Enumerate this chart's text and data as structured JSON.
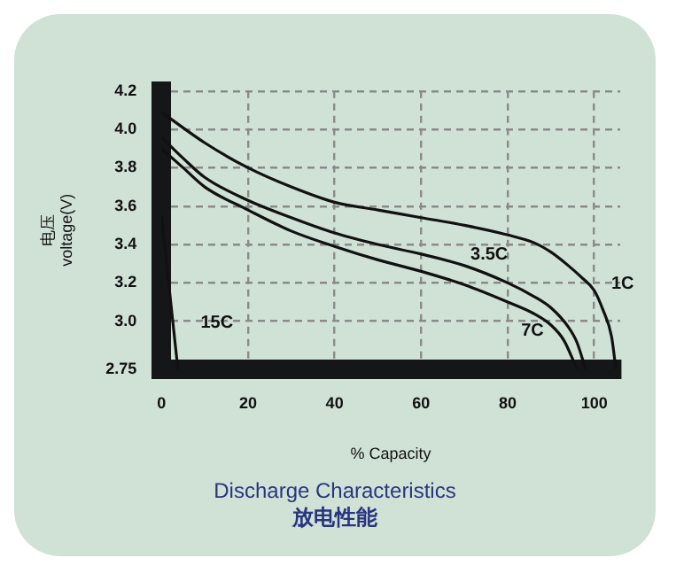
{
  "chart_data": {
    "type": "line",
    "title": "Discharge Characteristics",
    "subtitle": "放电性能",
    "xlabel": "% Capacity",
    "ylabel": "电压\nvoltage(V)",
    "xlim": [
      0,
      106
    ],
    "xticks": [
      0,
      20,
      40,
      60,
      80,
      100
    ],
    "ylim": [
      2.75,
      4.2
    ],
    "yticks": [
      2.75,
      {
        "value": 3,
        "label": "3.0"
      },
      3.2,
      3.4,
      3.6,
      3.8,
      {
        "value": 4,
        "label": "4.0"
      },
      4.2
    ],
    "grid": true,
    "legend": false,
    "marker": "none",
    "line_style": "solid",
    "series": [
      {
        "name": "1C",
        "color": "#111111",
        "x": [
          0,
          10,
          20,
          30,
          40,
          50,
          60,
          70,
          80,
          86,
          90,
          94,
          97,
          100,
          102,
          104,
          105
        ],
        "values": [
          4.09,
          3.93,
          3.8,
          3.7,
          3.62,
          3.58,
          3.54,
          3.5,
          3.45,
          3.41,
          3.36,
          3.29,
          3.23,
          3.16,
          3.06,
          2.92,
          2.75
        ]
      },
      {
        "name": "3.5C",
        "color": "#111111",
        "x": [
          0,
          5,
          10,
          20,
          30,
          40,
          50,
          60,
          70,
          80,
          86,
          90,
          94,
          96,
          98
        ],
        "values": [
          3.96,
          3.85,
          3.75,
          3.63,
          3.54,
          3.46,
          3.4,
          3.35,
          3.29,
          3.2,
          3.13,
          3.07,
          2.97,
          2.89,
          2.75
        ]
      },
      {
        "name": "7C",
        "color": "#111111",
        "x": [
          0,
          5,
          10,
          20,
          30,
          40,
          50,
          60,
          70,
          80,
          86,
          90,
          93,
          96
        ],
        "values": [
          3.9,
          3.8,
          3.7,
          3.58,
          3.47,
          3.39,
          3.32,
          3.26,
          3.19,
          3.1,
          3.04,
          2.98,
          2.9,
          2.75
        ]
      },
      {
        "name": "15C",
        "color": "#111111",
        "x": [
          0,
          3.8
        ],
        "values": [
          3.55,
          2.75
        ]
      }
    ]
  }
}
